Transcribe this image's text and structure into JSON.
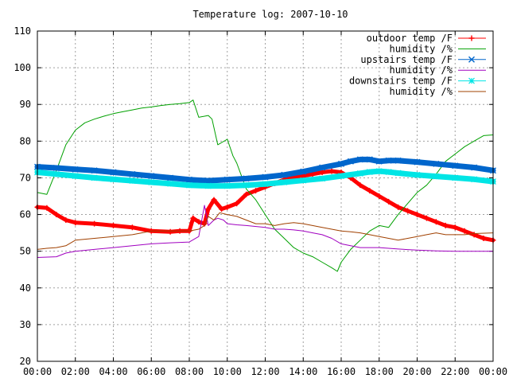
{
  "chart_data": {
    "type": "line",
    "title": "Temperature log: 2007-10-10",
    "xlabel": "",
    "ylabel": "",
    "ylim": [
      20,
      110
    ],
    "xlim": [
      0,
      24
    ],
    "grid": true,
    "legend_position": "top-right",
    "x_ticks": [
      "00:00",
      "02:00",
      "04:00",
      "06:00",
      "08:00",
      "10:00",
      "12:00",
      "14:00",
      "16:00",
      "18:00",
      "20:00",
      "22:00",
      "00:00"
    ],
    "y_ticks": [
      "20",
      "30",
      "40",
      "50",
      "60",
      "70",
      "80",
      "90",
      "100",
      "110"
    ],
    "series": [
      {
        "name": "outdoor temp /F",
        "color": "#ff0000",
        "marker": "plus",
        "x": [
          0,
          0.5,
          1,
          1.5,
          2,
          3,
          4,
          5,
          6,
          7,
          7.5,
          8,
          8.2,
          8.5,
          8.8,
          9,
          9.3,
          9.7,
          10,
          10.5,
          11,
          11.5,
          12,
          12.5,
          13,
          13.5,
          14,
          14.5,
          15,
          15.5,
          16,
          16.5,
          17,
          17.5,
          18,
          18.5,
          19,
          19.5,
          20,
          20.5,
          21,
          21.5,
          22,
          22.5,
          23,
          23.5,
          24
        ],
        "y": [
          62,
          61.8,
          60,
          58.5,
          57.8,
          57.5,
          57,
          56.5,
          55.5,
          55.3,
          55.5,
          55.5,
          59,
          58,
          57.5,
          61.5,
          64,
          61.5,
          62,
          63,
          65.5,
          66.5,
          67.5,
          68.5,
          69.5,
          70,
          70.5,
          71,
          71.5,
          71.8,
          71.5,
          70,
          68,
          66.5,
          65,
          63.5,
          62,
          61,
          60,
          59,
          58,
          57,
          56.5,
          55.5,
          54.5,
          53.5,
          53
        ]
      },
      {
        "name": "humidity /%",
        "color": "#00a000",
        "marker": "none",
        "x": [
          0,
          0.5,
          1,
          1.5,
          2,
          2.5,
          3,
          3.5,
          4,
          4.5,
          5,
          5.5,
          6,
          6.5,
          7,
          7.5,
          8,
          8.2,
          8.5,
          9,
          9.2,
          9.5,
          10,
          10.3,
          10.5,
          11,
          11.5,
          12,
          12.5,
          13,
          13.5,
          14,
          14.5,
          15,
          15.5,
          15.8,
          16,
          16.5,
          17,
          17.5,
          18,
          18.5,
          19,
          19.5,
          20,
          20.5,
          21,
          21.5,
          22,
          22.5,
          23,
          23.5,
          24
        ],
        "y": [
          66,
          65.5,
          72,
          79,
          83,
          85,
          86,
          86.8,
          87.5,
          88,
          88.5,
          89,
          89.3,
          89.7,
          90,
          90.2,
          90.5,
          91.2,
          86.5,
          87,
          86,
          79,
          80.5,
          76,
          74,
          67,
          64,
          60,
          56,
          53.5,
          51,
          49.5,
          48.5,
          47,
          45.5,
          44.5,
          47,
          50.5,
          53,
          55.5,
          57,
          56.5,
          60,
          63,
          66,
          68,
          71,
          74.5,
          76.5,
          78.5,
          80,
          81.5,
          81.7
        ]
      },
      {
        "name": "upstairs temp /F",
        "color": "#0066cc",
        "marker": "cross",
        "x": [
          0,
          1,
          2,
          3,
          4,
          5,
          6,
          7,
          8,
          9,
          10,
          11,
          12,
          13,
          14,
          15,
          16,
          16.5,
          17,
          17.5,
          18,
          18.5,
          19,
          20,
          21,
          22,
          23,
          24
        ],
        "y": [
          73,
          72.7,
          72.3,
          72,
          71.5,
          71,
          70.5,
          70,
          69.5,
          69.2,
          69.5,
          69.8,
          70.2,
          70.8,
          71.7,
          72.8,
          73.8,
          74.5,
          75,
          75,
          74.5,
          74.7,
          74.7,
          74.3,
          73.8,
          73.3,
          72.8,
          72
        ]
      },
      {
        "name": "humidity /%",
        "color": "#a000c0",
        "marker": "none",
        "x": [
          0,
          1,
          1.5,
          2,
          3,
          4,
          5,
          6,
          7,
          8,
          8.5,
          8.8,
          9,
          9.3,
          9.5,
          9.8,
          10,
          10.5,
          11,
          12,
          12.5,
          13,
          13.5,
          14,
          14.5,
          15,
          15.5,
          16,
          16.5,
          17,
          17.5,
          18,
          19,
          20,
          21,
          22,
          23,
          24
        ],
        "y": [
          48.3,
          48.5,
          49.5,
          50,
          50.5,
          51,
          51.5,
          52,
          52.3,
          52.5,
          54,
          62.5,
          57,
          58.5,
          59,
          58.5,
          57.5,
          57.2,
          57,
          56.5,
          56,
          56,
          55.8,
          55.5,
          55,
          54.5,
          53.5,
          52,
          51.5,
          51,
          51,
          51,
          50.6,
          50.3,
          50.1,
          50,
          50,
          50
        ]
      },
      {
        "name": "downstairs temp /F",
        "color": "#00e5e5",
        "marker": "star",
        "x": [
          0,
          1,
          2,
          3,
          4,
          5,
          6,
          7,
          8,
          9,
          10,
          11,
          12,
          13,
          14,
          15,
          16,
          17,
          17.5,
          18,
          18.5,
          19,
          20,
          21,
          22,
          23,
          24
        ],
        "y": [
          71.5,
          71,
          70.5,
          70,
          69.6,
          69.2,
          68.8,
          68.4,
          68,
          67.8,
          67.8,
          68,
          68.3,
          68.8,
          69.3,
          69.8,
          70.5,
          71.2,
          71.6,
          71.8,
          71.6,
          71.3,
          70.8,
          70.4,
          70,
          69.6,
          69
        ]
      },
      {
        "name": "humidity /%",
        "color": "#a04000",
        "marker": "none",
        "x": [
          0,
          0.5,
          1,
          1.5,
          2,
          3,
          4,
          5,
          5.5,
          6,
          7,
          8,
          8.5,
          8.8,
          9,
          9.3,
          9.6,
          10,
          10.5,
          11,
          11.5,
          12,
          12.5,
          13,
          13.5,
          14,
          15,
          16,
          16.5,
          17,
          17.5,
          18,
          18.5,
          19,
          19.5,
          20,
          20.5,
          21,
          21.5,
          22,
          22.5,
          23,
          24
        ],
        "y": [
          50.5,
          50.8,
          51,
          51.5,
          53,
          53.5,
          54,
          54.5,
          55,
          55.5,
          55.5,
          55.5,
          56,
          57,
          59.5,
          58.5,
          60.5,
          60,
          59.5,
          58.5,
          57.5,
          57.5,
          57,
          57.5,
          57.8,
          57.5,
          56.5,
          55.5,
          55.3,
          55,
          54.5,
          54,
          53.5,
          53,
          53.5,
          54,
          54.5,
          55,
          54.5,
          54.5,
          54.5,
          54.8,
          55
        ]
      }
    ]
  }
}
